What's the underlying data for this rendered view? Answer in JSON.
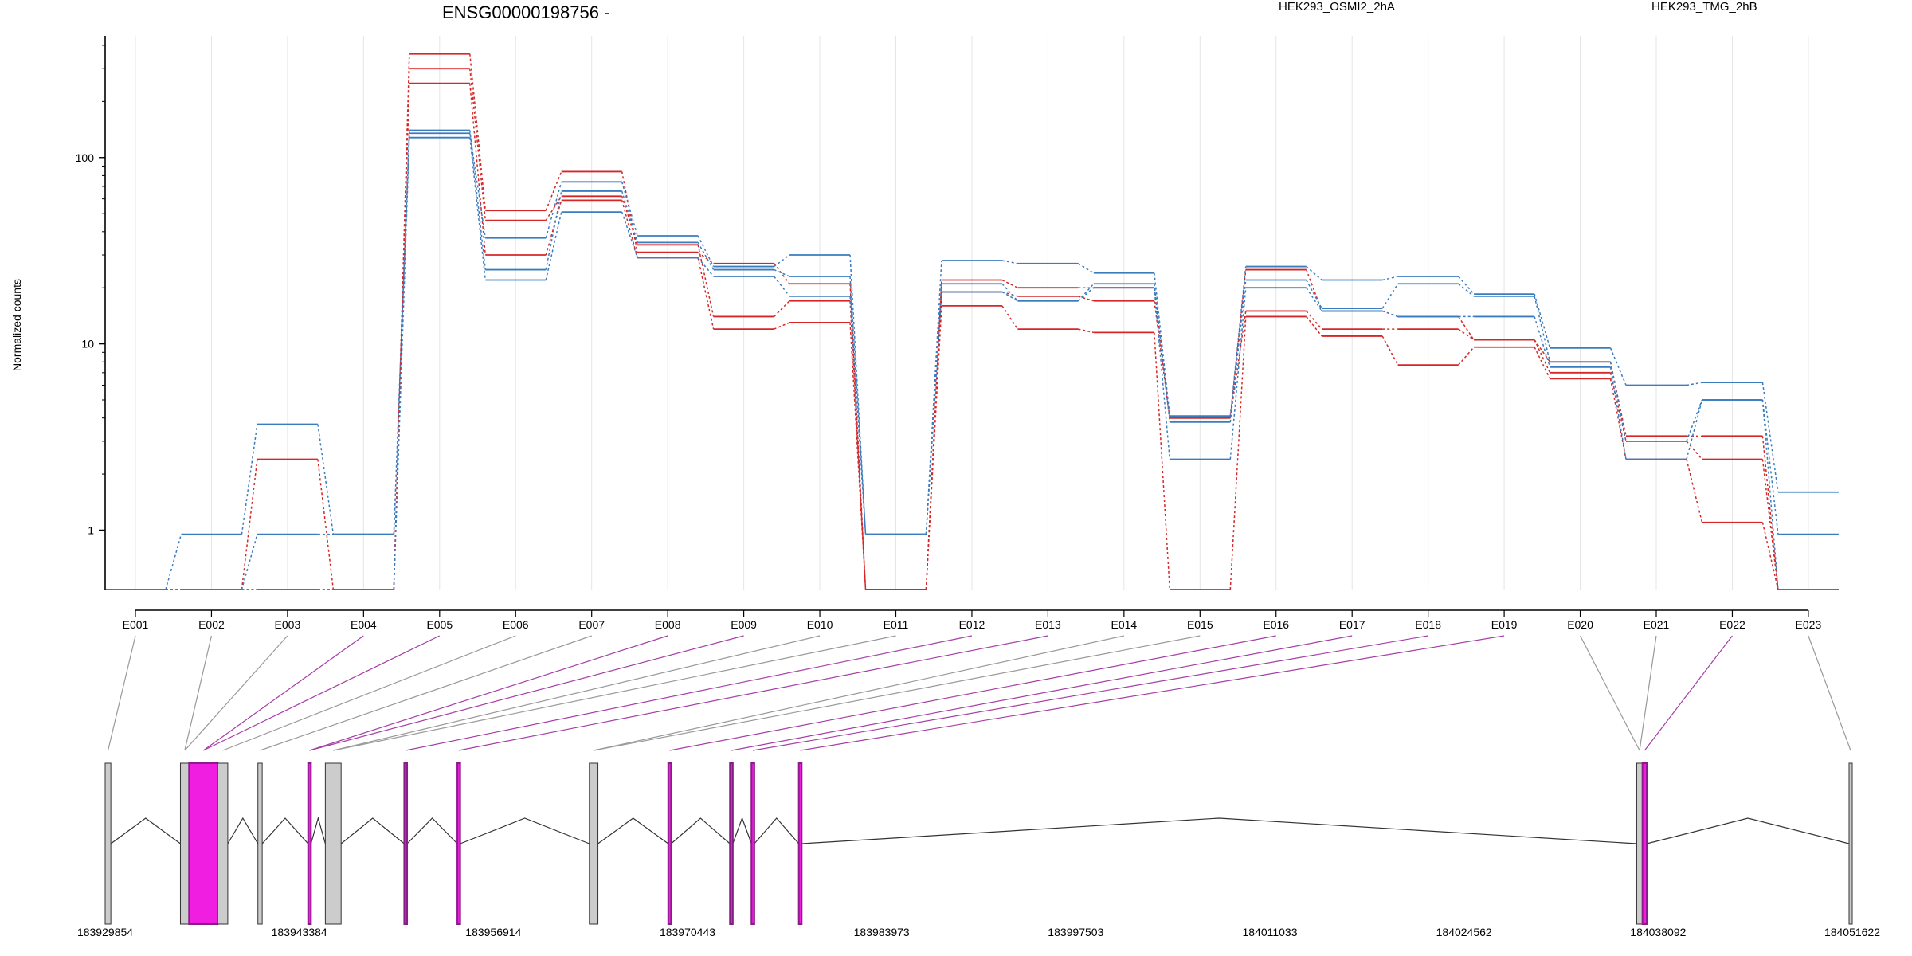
{
  "chart_data": {
    "type": "line",
    "title": "ENSG00000198756 -",
    "xlabel": "",
    "ylabel": "Normalized counts",
    "y_scale": "log",
    "ylim": [
      0.48,
      450
    ],
    "y_ticks": [
      {
        "value": 1,
        "label": "1"
      },
      {
        "value": 10,
        "label": "10"
      },
      {
        "value": 100,
        "label": "100"
      }
    ],
    "categories": [
      "E001",
      "E002",
      "E003",
      "E004",
      "E005",
      "E006",
      "E007",
      "E008",
      "E009",
      "E010",
      "E011",
      "E012",
      "E013",
      "E014",
      "E015",
      "E016",
      "E017",
      "E018",
      "E019",
      "E020",
      "E021",
      "E022",
      "E023"
    ],
    "grid": true,
    "legend_placement": "top",
    "legend": [
      {
        "label": "HEK293_OSMI2_2hA",
        "color": "#d62728"
      },
      {
        "label": "HEK293_TMG_2hB",
        "color": "#3a7dbf"
      }
    ],
    "series": [
      {
        "color": "#d62728",
        "values": [
          0.48,
          0.48,
          2.4,
          0.48,
          360,
          52,
          84,
          31,
          27,
          21,
          0.48,
          22,
          20,
          20,
          4.0,
          25,
          15,
          14,
          10.5,
          8,
          3.2,
          3.2,
          0.48
        ]
      },
      {
        "color": "#d62728",
        "values": [
          0.48,
          0.48,
          0.48,
          0.48,
          300,
          46,
          62,
          34,
          14,
          17,
          0.48,
          19,
          18,
          17,
          4.0,
          15,
          12,
          12,
          10.5,
          7,
          3.0,
          2.4,
          0.48
        ]
      },
      {
        "color": "#d62728",
        "values": [
          0.48,
          0.48,
          0.48,
          0.48,
          250,
          30,
          59,
          29,
          12,
          13,
          0.48,
          16,
          12,
          11.5,
          0.48,
          14,
          11,
          7.7,
          9.6,
          6.5,
          2.4,
          1.1,
          0.48
        ]
      },
      {
        "color": "#3a7dbf",
        "values": [
          0.48,
          0.95,
          3.7,
          0.95,
          135,
          37,
          74,
          38,
          26,
          30,
          0.95,
          28,
          27,
          24,
          4.1,
          26,
          22,
          23,
          18.5,
          9.5,
          6,
          6.2,
          1.6
        ]
      },
      {
        "color": "#3a7dbf",
        "values": [
          0.48,
          0.48,
          0.95,
          0.95,
          140,
          25,
          66,
          35,
          25,
          23,
          0.95,
          21,
          17,
          21,
          3.8,
          22,
          15.5,
          21,
          18,
          8,
          3.0,
          5,
          0.95
        ]
      },
      {
        "color": "#3a7dbf",
        "values": [
          0.48,
          0.48,
          0.48,
          0.48,
          128,
          22,
          51,
          29,
          23,
          18,
          0.95,
          19,
          17,
          20,
          2.4,
          20,
          15,
          14,
          14,
          7.5,
          2.4,
          5,
          0.48
        ]
      }
    ],
    "gene_model": {
      "coordinate_ticks": [
        "183929854",
        "183943384",
        "183956914",
        "183970443",
        "183983973",
        "183997503",
        "184011033",
        "184024562",
        "184038092",
        "184051622"
      ],
      "coord_start": 183929854,
      "coord_end": 184051622,
      "exons": [
        {
          "id": "E001",
          "start": 183929854,
          "end": 183930250,
          "highlight": false
        },
        {
          "id": "E002",
          "start": 183935100,
          "end": 183935700,
          "highlight": false
        },
        {
          "id": "E003",
          "start": 183935700,
          "end": 183937700,
          "highlight": true
        },
        {
          "id": "E004",
          "start": 183937700,
          "end": 183938400,
          "highlight": false
        },
        {
          "id": "E005",
          "start": 183940500,
          "end": 183940800,
          "highlight": false
        },
        {
          "id": "E006",
          "start": 183944000,
          "end": 183944200,
          "highlight": true
        },
        {
          "id": "E007",
          "start": 183945200,
          "end": 183946300,
          "highlight": false
        },
        {
          "id": "E008",
          "start": 183950700,
          "end": 183950900,
          "highlight": true
        },
        {
          "id": "E009",
          "start": 183954400,
          "end": 183954600,
          "highlight": true
        },
        {
          "id": "E010",
          "start": 183963600,
          "end": 183964200,
          "highlight": false
        },
        {
          "id": "E011",
          "start": 183969100,
          "end": 183969300,
          "highlight": true
        },
        {
          "id": "E012",
          "start": 183973400,
          "end": 183973600,
          "highlight": true
        },
        {
          "id": "E013",
          "start": 183974900,
          "end": 183975100,
          "highlight": true
        },
        {
          "id": "E014",
          "start": 183978200,
          "end": 183978400,
          "highlight": true
        },
        {
          "id": "E015",
          "start": 184036600,
          "end": 184037000,
          "highlight": false
        },
        {
          "id": "E016",
          "start": 184037000,
          "end": 184037300,
          "highlight": true
        },
        {
          "id": "E017",
          "start": 184051400,
          "end": 184051622,
          "highlight": false
        }
      ],
      "connectors": [
        {
          "label": "E001",
          "exon": "E001",
          "highlight": false
        },
        {
          "label": "E002",
          "exon": "E002",
          "highlight": false
        },
        {
          "label": "E003",
          "exon": "E002",
          "highlight": false
        },
        {
          "label": "E004",
          "exon": "E003",
          "highlight": true
        },
        {
          "label": "E005",
          "exon": "E003",
          "highlight": true
        },
        {
          "label": "E006",
          "exon": "E004",
          "highlight": false
        },
        {
          "label": "E007",
          "exon": "E005",
          "highlight": false
        },
        {
          "label": "E008",
          "exon": "E006",
          "highlight": true
        },
        {
          "label": "E009",
          "exon": "E006",
          "highlight": true
        },
        {
          "label": "E010",
          "exon": "E007",
          "highlight": false
        },
        {
          "label": "E011",
          "exon": "E007",
          "highlight": false
        },
        {
          "label": "E012",
          "exon": "E008",
          "highlight": true
        },
        {
          "label": "E013",
          "exon": "E009",
          "highlight": true
        },
        {
          "label": "E014",
          "exon": "E010",
          "highlight": false
        },
        {
          "label": "E015",
          "exon": "E010",
          "highlight": false
        },
        {
          "label": "E016",
          "exon": "E011",
          "highlight": true
        },
        {
          "label": "E017",
          "exon": "E012",
          "highlight": true
        },
        {
          "label": "E018",
          "exon": "E013",
          "highlight": true
        },
        {
          "label": "E019",
          "exon": "E014",
          "highlight": true
        },
        {
          "label": "E020",
          "exon": "E015",
          "highlight": false
        },
        {
          "label": "E021",
          "exon": "E015",
          "highlight": false
        },
        {
          "label": "E022",
          "exon": "E016",
          "highlight": true
        },
        {
          "label": "E023",
          "exon": "E017",
          "highlight": false
        }
      ]
    }
  },
  "colors": {
    "osmi": "#d62728",
    "tmg": "#3a7dbf",
    "exon_fill": "#cccccc",
    "exon_highlight": "#f01ee0",
    "exon_highlight_edge": "#8a1c8a",
    "connector_plain": "#999999",
    "connector_highlight": "#a63ea6",
    "grid": "#e5e5e5"
  }
}
